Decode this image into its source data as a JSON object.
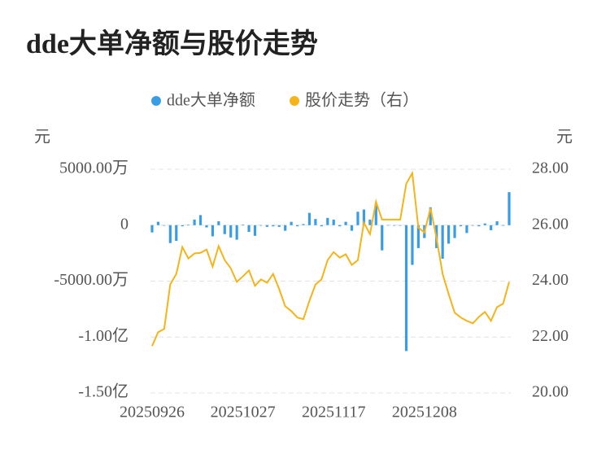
{
  "chart_data": {
    "type": "bar_line",
    "title": "dde大单净额与股价走势",
    "y_label": "元",
    "y2_label": "元",
    "categories": [
      "20250926",
      null,
      null,
      null,
      null,
      null,
      null,
      null,
      null,
      null,
      null,
      null,
      null,
      null,
      null,
      "20251027",
      null,
      null,
      null,
      null,
      null,
      null,
      null,
      null,
      null,
      null,
      null,
      null,
      null,
      null,
      "20251117",
      null,
      null,
      null,
      null,
      null,
      null,
      null,
      null,
      null,
      null,
      null,
      null,
      null,
      null,
      "20251208",
      null,
      null,
      null,
      null,
      null,
      null,
      null,
      null,
      null,
      null,
      null,
      null,
      null,
      null
    ],
    "series": [
      {
        "name": "dde大单净额",
        "color": "#3a9de3",
        "kind": "bar",
        "axis": "y",
        "values": [
          -650,
          300,
          -50,
          -1600,
          -1400,
          -100,
          50,
          500,
          900,
          -200,
          -1000,
          350,
          -800,
          -1100,
          -1300,
          50,
          -600,
          -950,
          -50,
          -150,
          -100,
          -150,
          -500,
          300,
          -100,
          100,
          1100,
          550,
          -100,
          650,
          500,
          -100,
          300,
          -500,
          1200,
          1400,
          500,
          1950,
          -2250,
          0,
          -50,
          -50,
          -11250,
          -3550,
          -2050,
          -1150,
          1600,
          -2050,
          -3000,
          -1650,
          -1150,
          -100,
          -700,
          -50,
          -100,
          150,
          -450,
          350,
          -50,
          2950
        ]
      },
      {
        "name": "股价走势（右）",
        "color": "#f4b41a",
        "kind": "line",
        "axis": "y2",
        "values": [
          21.68,
          22.17,
          22.29,
          23.88,
          24.26,
          25.22,
          24.81,
          24.99,
          25.01,
          25.13,
          24.52,
          25.25,
          24.75,
          24.46,
          23.97,
          24.17,
          24.38,
          23.83,
          24.06,
          23.94,
          24.26,
          23.71,
          23.1,
          22.93,
          22.7,
          22.64,
          23.3,
          23.88,
          24.06,
          24.75,
          25.04,
          24.84,
          24.96,
          24.58,
          24.75,
          26.09,
          25.68,
          26.84,
          26.2,
          26.2,
          26.2,
          26.2,
          27.48,
          27.86,
          25.91,
          25.74,
          26.61,
          25.54,
          24.26,
          23.54,
          22.87,
          22.7,
          22.58,
          22.49,
          22.72,
          22.9,
          22.58,
          23.07,
          23.19,
          23.97
        ]
      }
    ],
    "ylim": [
      -15000,
      5000
    ],
    "yticks": [
      {
        "value": 5000,
        "label": "5000.00万"
      },
      0,
      {
        "value": -5000,
        "label": "-5000.00万"
      },
      {
        "value": -10000,
        "label": "-1.00亿"
      },
      {
        "value": -15000,
        "label": "-1.50亿"
      }
    ],
    "y2lim": [
      20,
      28
    ],
    "y2ticks": [
      {
        "value": 28,
        "label": "28.00"
      },
      {
        "value": 26,
        "label": "26.00"
      },
      {
        "value": 24,
        "label": "24.00"
      },
      {
        "value": 22,
        "label": "22.00"
      },
      {
        "value": 20,
        "label": "20.00"
      }
    ],
    "grid": true
  }
}
